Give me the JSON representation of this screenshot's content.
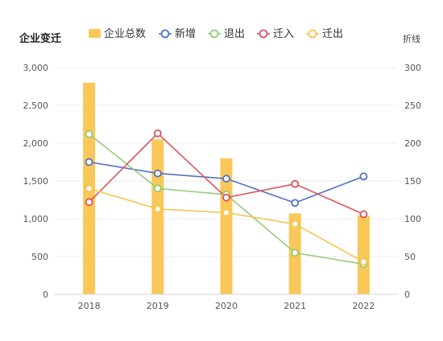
{
  "chart_data": {
    "type": "bar",
    "title": "企业变迁",
    "categories": [
      "2018",
      "2019",
      "2020",
      "2021",
      "2022"
    ],
    "left_axis": {
      "label": "",
      "min": 0,
      "max": 3000,
      "ticks": [
        "0",
        "500",
        "1,000",
        "1,500",
        "2,000",
        "2,500",
        "3,000"
      ]
    },
    "right_axis": {
      "label": "折线",
      "min": 0,
      "max": 300,
      "ticks": [
        "0",
        "50",
        "100",
        "150",
        "200",
        "250",
        "300"
      ]
    },
    "bar_series": {
      "name": "企业总数",
      "axis": "left",
      "color": "#FAC858",
      "values": [
        2800,
        2050,
        1800,
        1070,
        1040
      ]
    },
    "line_series": [
      {
        "name": "新增",
        "axis": "right",
        "color": "#5470C6",
        "values": [
          175,
          160,
          153,
          121,
          156
        ]
      },
      {
        "name": "退出",
        "axis": "right",
        "color": "#91CC75",
        "values": [
          212,
          140,
          132,
          55,
          40
        ]
      },
      {
        "name": "迁入",
        "axis": "right",
        "color": "#E0525A",
        "values": [
          122,
          213,
          128,
          146,
          106
        ]
      },
      {
        "name": "迁出",
        "axis": "right",
        "color": "#F5C54E",
        "values": [
          140,
          113,
          108,
          93,
          43
        ]
      }
    ],
    "legend_position": "top",
    "grid": true
  }
}
